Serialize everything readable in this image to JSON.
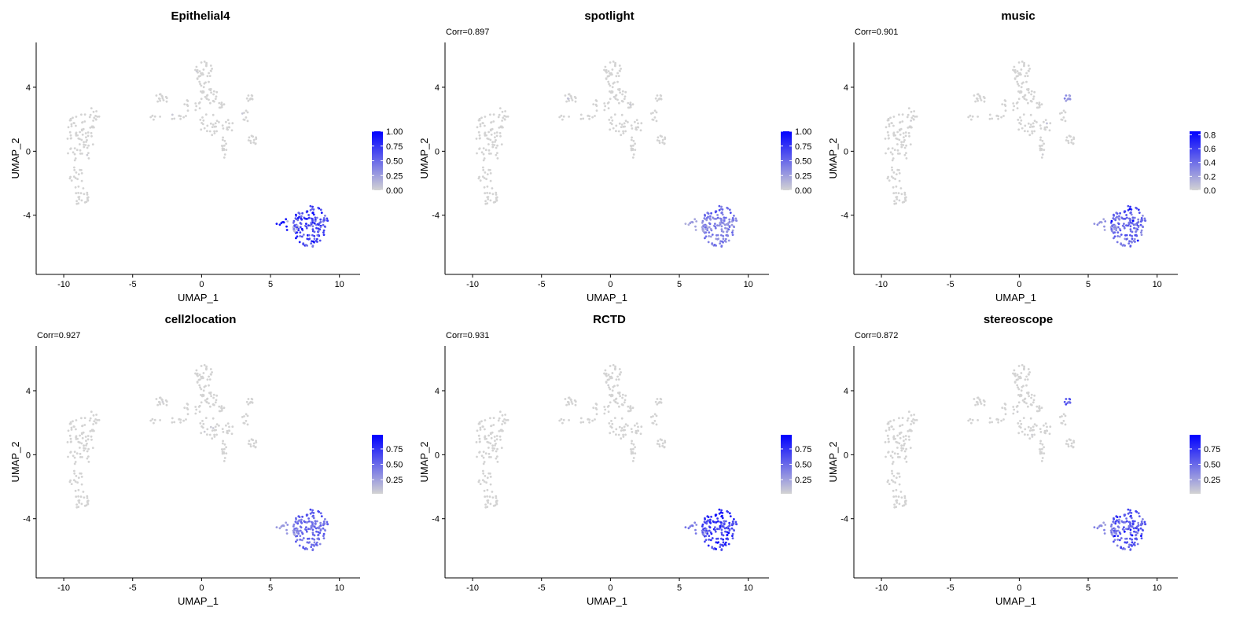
{
  "colors": {
    "low": "#d3d3d3",
    "high": "#0000ff",
    "axis": "#000000"
  },
  "chart_data": [
    {
      "type": "scatter",
      "title": "Epithelial4",
      "corr": "",
      "xlabel": "UMAP_1",
      "ylabel": "UMAP_2",
      "xlim": [
        -12,
        11.5
      ],
      "ylim": [
        -7.7,
        6.8
      ],
      "xticks": [
        "-10",
        "-5",
        "0",
        "5",
        "10"
      ],
      "xtick_values": [
        -10,
        -5,
        0,
        5,
        10
      ],
      "yticks": [
        "4",
        "0",
        "-4"
      ],
      "ytick_values": [
        4,
        0,
        -4
      ],
      "legend": {
        "min": 0.0,
        "max": 1.0,
        "labels": [
          "1.00",
          "0.75",
          "0.50",
          "0.25",
          "0.00"
        ],
        "label_values": [
          1.0,
          0.75,
          0.5,
          0.25,
          0.0
        ]
      },
      "value_profile": {
        "cluster_level": 0.62,
        "noise": 0.25,
        "hot_spots": 0.1,
        "west_low": true,
        "islet_level": 0.0
      }
    },
    {
      "type": "scatter",
      "title": "spotlight",
      "corr": "Corr=0.897",
      "xlabel": "UMAP_1",
      "ylabel": "UMAP_2",
      "xlim": [
        -12,
        11.5
      ],
      "ylim": [
        -7.7,
        6.8
      ],
      "xticks": [
        "-10",
        "-5",
        "0",
        "5",
        "10"
      ],
      "xtick_values": [
        -10,
        -5,
        0,
        5,
        10
      ],
      "yticks": [
        "4",
        "0",
        "-4"
      ],
      "ytick_values": [
        4,
        0,
        -4
      ],
      "legend": {
        "min": 0.0,
        "max": 1.0,
        "labels": [
          "1.00",
          "0.75",
          "0.50",
          "0.25",
          "0.00"
        ],
        "label_values": [
          1.0,
          0.75,
          0.5,
          0.25,
          0.0
        ]
      },
      "value_profile": {
        "cluster_level": 0.4,
        "noise": 0.15,
        "hot_spots": 0.0,
        "west_low": false,
        "islet_level": 0.0
      }
    },
    {
      "type": "scatter",
      "title": "music",
      "corr": "Corr=0.901",
      "xlabel": "UMAP_1",
      "ylabel": "UMAP_2",
      "xlim": [
        -12,
        11.5
      ],
      "ylim": [
        -7.7,
        6.8
      ],
      "xticks": [
        "-10",
        "-5",
        "0",
        "5",
        "10"
      ],
      "xtick_values": [
        -10,
        -5,
        0,
        5,
        10
      ],
      "yticks": [
        "4",
        "0",
        "-4"
      ],
      "ytick_values": [
        4,
        0,
        -4
      ],
      "legend": {
        "min": 0.0,
        "max": 0.85,
        "labels": [
          "0.8",
          "0.6",
          "0.4",
          "0.2",
          "0.0"
        ],
        "label_values": [
          0.8,
          0.6,
          0.4,
          0.2,
          0.0
        ]
      },
      "value_profile": {
        "cluster_level": 0.42,
        "noise": 0.15,
        "hot_spots": 0.02,
        "west_low": false,
        "islet_level": 0.3
      }
    },
    {
      "type": "scatter",
      "title": "cell2location",
      "corr": "Corr=0.927",
      "xlabel": "UMAP_1",
      "ylabel": "UMAP_2",
      "xlim": [
        -12,
        11.5
      ],
      "ylim": [
        -7.7,
        6.8
      ],
      "xticks": [
        "-10",
        "-5",
        "0",
        "5",
        "10"
      ],
      "xtick_values": [
        -10,
        -5,
        0,
        5,
        10
      ],
      "yticks": [
        "4",
        "0",
        "-4"
      ],
      "ytick_values": [
        4,
        0,
        -4
      ],
      "legend": {
        "min": 0.02,
        "max": 0.98,
        "labels": [
          "0.75",
          "0.50",
          "0.25"
        ],
        "label_values": [
          0.75,
          0.5,
          0.25
        ]
      },
      "value_profile": {
        "cluster_level": 0.48,
        "noise": 0.12,
        "hot_spots": 0.0,
        "west_low": false,
        "islet_level": 0.0
      }
    },
    {
      "type": "scatter",
      "title": "RCTD",
      "corr": "Corr=0.931",
      "xlabel": "UMAP_1",
      "ylabel": "UMAP_2",
      "xlim": [
        -12,
        11.5
      ],
      "ylim": [
        -7.7,
        6.8
      ],
      "xticks": [
        "-10",
        "-5",
        "0",
        "5",
        "10"
      ],
      "xtick_values": [
        -10,
        -5,
        0,
        5,
        10
      ],
      "yticks": [
        "4",
        "0",
        "-4"
      ],
      "ytick_values": [
        4,
        0,
        -4
      ],
      "legend": {
        "min": 0.02,
        "max": 0.98,
        "labels": [
          "0.75",
          "0.50",
          "0.25"
        ],
        "label_values": [
          0.75,
          0.5,
          0.25
        ]
      },
      "value_profile": {
        "cluster_level": 0.68,
        "noise": 0.2,
        "hot_spots": 0.05,
        "west_low": false,
        "islet_level": 0.0
      }
    },
    {
      "type": "scatter",
      "title": "stereoscope",
      "corr": "Corr=0.872",
      "xlabel": "UMAP_1",
      "ylabel": "UMAP_2",
      "xlim": [
        -12,
        11.5
      ],
      "ylim": [
        -7.7,
        6.8
      ],
      "xticks": [
        "-10",
        "-5",
        "0",
        "5",
        "10"
      ],
      "xtick_values": [
        -10,
        -5,
        0,
        5,
        10
      ],
      "yticks": [
        "4",
        "0",
        "-4"
      ],
      "ytick_values": [
        4,
        0,
        -4
      ],
      "legend": {
        "min": 0.02,
        "max": 0.98,
        "labels": [
          "0.75",
          "0.50",
          "0.25"
        ],
        "label_values": [
          0.75,
          0.5,
          0.25
        ]
      },
      "value_profile": {
        "cluster_level": 0.55,
        "noise": 0.2,
        "hot_spots": 0.04,
        "west_low": false,
        "islet_level": 0.6
      }
    }
  ]
}
